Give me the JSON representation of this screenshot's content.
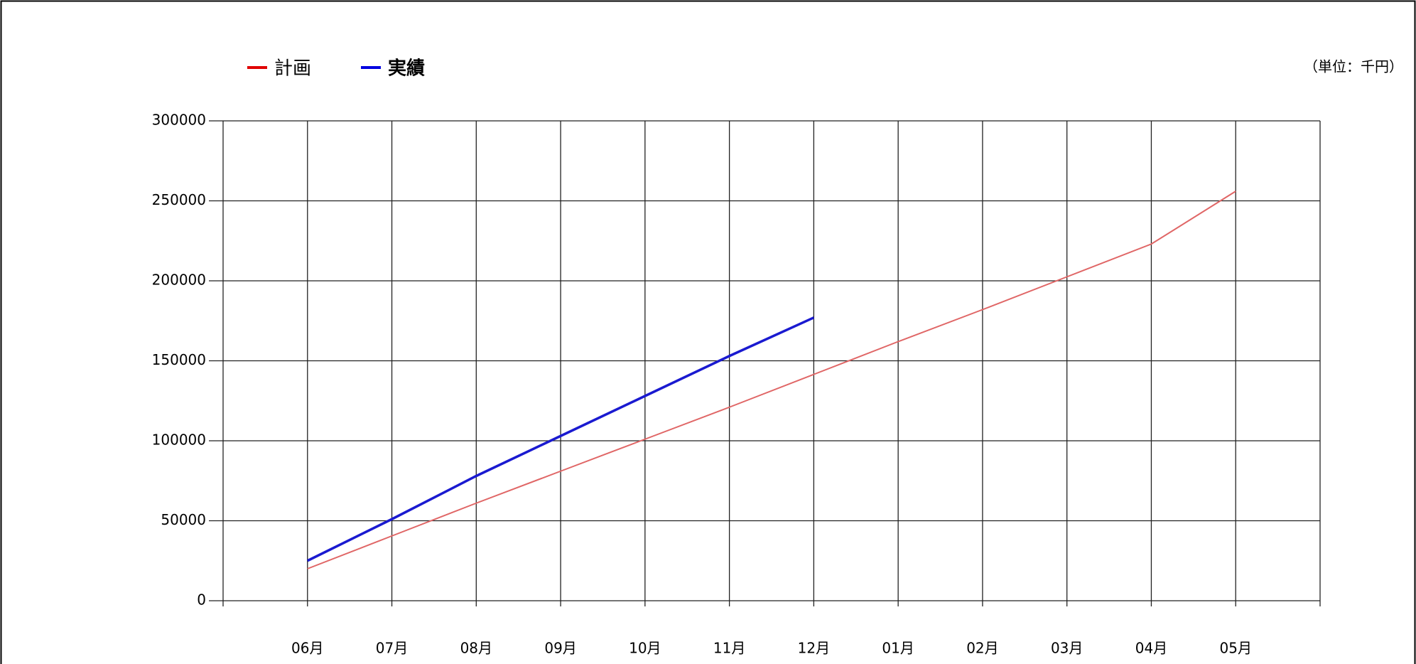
{
  "chart_data": {
    "type": "line",
    "unit_label": "（単位：千円）",
    "categories": [
      "06月",
      "07月",
      "08月",
      "09月",
      "10月",
      "11月",
      "12月",
      "01月",
      "02月",
      "03月",
      "04月",
      "05月"
    ],
    "series": [
      {
        "name": "計画",
        "color": "#e06666",
        "legend_color": "#e00000",
        "values": [
          20000,
          40500,
          61000,
          81000,
          101000,
          121000,
          141500,
          162000,
          182000,
          202500,
          223000,
          256000
        ]
      },
      {
        "name": "実績",
        "color": "#1a1ad0",
        "legend_color": "#0000e0",
        "values": [
          25000,
          51000,
          78000,
          103000,
          128000,
          153000,
          177000,
          null,
          null,
          null,
          null,
          null
        ]
      }
    ],
    "ylim": [
      0,
      300000
    ],
    "yticks": [
      0,
      50000,
      100000,
      150000,
      200000,
      250000,
      300000
    ],
    "grid": true
  }
}
